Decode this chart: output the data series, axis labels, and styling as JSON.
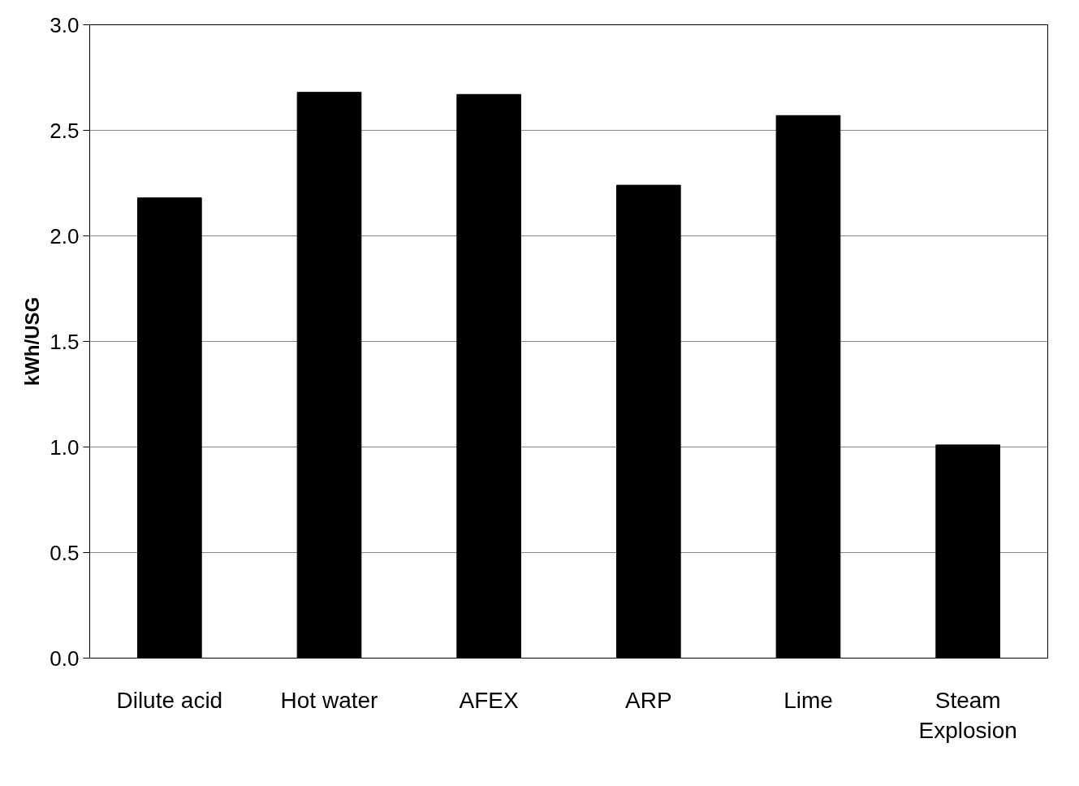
{
  "chart_data": {
    "type": "bar",
    "ylabel": "kWh/USG",
    "categories": [
      "Dilute acid",
      "Hot water",
      "AFEX",
      "ARP",
      "Lime",
      "Steam Explosion"
    ],
    "values": [
      2.18,
      2.68,
      2.67,
      2.24,
      2.57,
      1.01
    ],
    "color": "#000000",
    "ylim": [
      0,
      3.0
    ],
    "yticks": [
      {
        "value": 0,
        "label": "0.0"
      },
      {
        "value": 0.5,
        "label": "0.5"
      },
      {
        "value": 1.0,
        "label": "1.0"
      },
      {
        "value": 1.5,
        "label": "1.5"
      },
      {
        "value": 2.0,
        "label": "2.0"
      },
      {
        "value": 2.5,
        "label": "2.5"
      },
      {
        "value": 3.0,
        "label": "3.0"
      }
    ],
    "grid": "y"
  }
}
